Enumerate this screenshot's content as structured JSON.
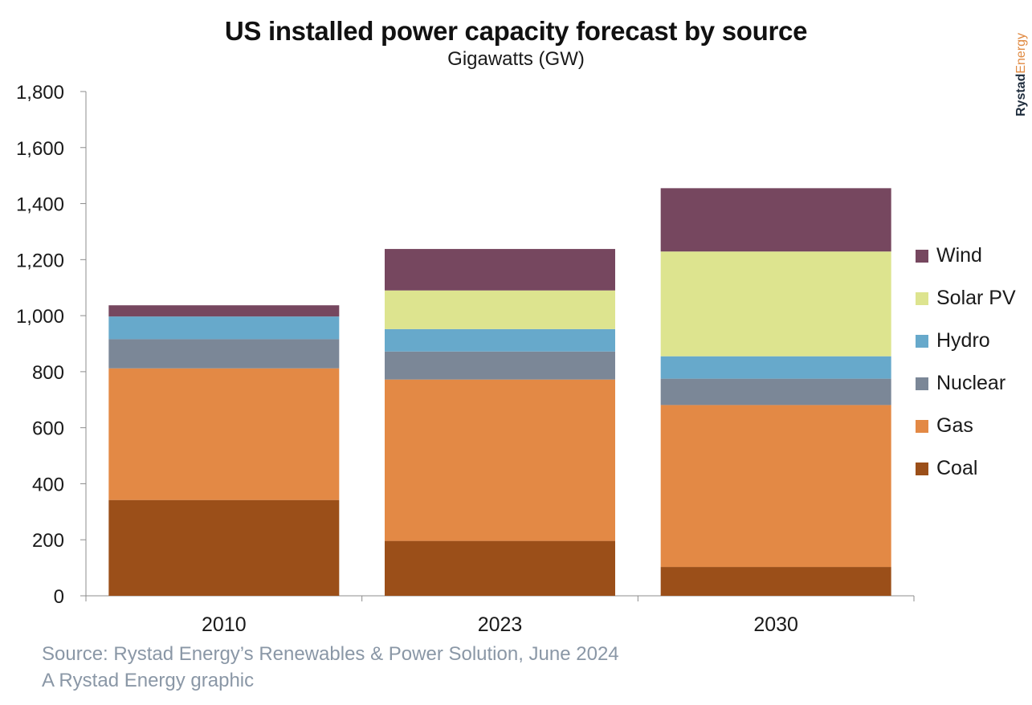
{
  "title": "US installed power capacity forecast by source",
  "subtitle": "Gigawatts (GW)",
  "brand": {
    "part1": "Rystad",
    "part2": "Energy"
  },
  "footer": {
    "source": "Source: Rystad Energy’s Renewables & Power Solution, June 2024",
    "credit": "A Rystad Energy graphic"
  },
  "colors": {
    "Coal": "#9b4f19",
    "Gas": "#e38945",
    "Nuclear": "#7b8797",
    "Hydro": "#67a9cb",
    "Solar PV": "#dde48f",
    "Wind": "#76475f",
    "axis": "#8c8c8c"
  },
  "chart_data": {
    "type": "bar",
    "stacked": true,
    "title": "US installed power capacity forecast by source",
    "subtitle": "Gigawatts (GW)",
    "categories": [
      "2010",
      "2023",
      "2030"
    ],
    "ylim": [
      0,
      1800
    ],
    "yticks": [
      0,
      200,
      400,
      600,
      800,
      1000,
      1200,
      1400,
      1600,
      1800
    ],
    "ytick_labels": [
      "0",
      "200",
      "400",
      "600",
      "800",
      "1,000",
      "1,200",
      "1,400",
      "1,600",
      "1,800"
    ],
    "grid": false,
    "legend_position": "right",
    "legend_order": [
      "Wind",
      "Solar PV",
      "Hydro",
      "Nuclear",
      "Gas",
      "Coal"
    ],
    "series": [
      {
        "name": "Coal",
        "values": [
          342,
          196,
          103
        ]
      },
      {
        "name": "Gas",
        "values": [
          470,
          576,
          578
        ]
      },
      {
        "name": "Nuclear",
        "values": [
          104,
          100,
          94
        ]
      },
      {
        "name": "Hydro",
        "values": [
          81,
          80,
          80
        ]
      },
      {
        "name": "Solar PV",
        "values": [
          0,
          138,
          374
        ]
      },
      {
        "name": "Wind",
        "values": [
          40,
          148,
          226
        ]
      }
    ]
  }
}
